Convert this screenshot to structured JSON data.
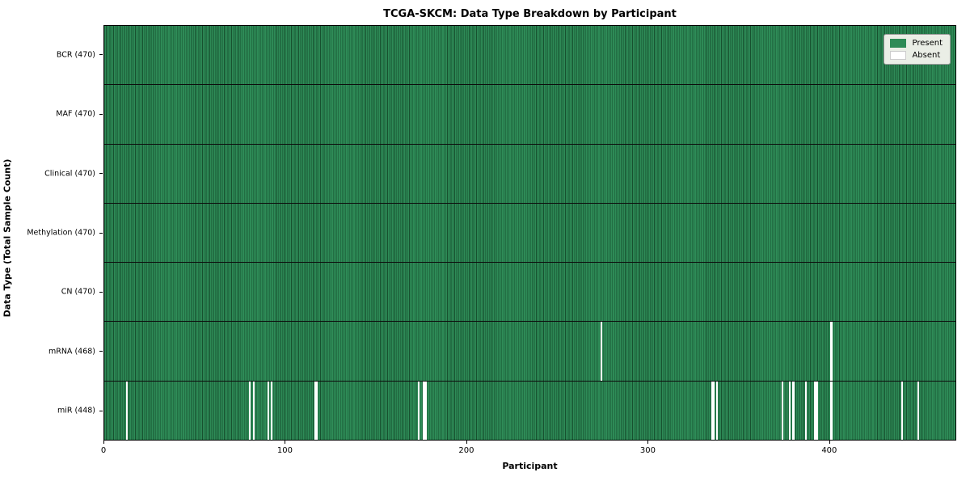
{
  "figure": {
    "title": "TCGA-SKCM: Data Type Breakdown by Participant",
    "xlabel": "Participant",
    "ylabel": "Data Type (Total Sample Count)"
  },
  "chart_data": {
    "type": "heatmap",
    "title": "TCGA-SKCM: Data Type Breakdown by Participant",
    "xlabel": "Participant",
    "ylabel": "Data Type (Total Sample Count)",
    "n_participants": 470,
    "x_ticks": [
      0,
      100,
      200,
      300,
      400
    ],
    "grid": false,
    "legend_position": "upper right",
    "colors": {
      "present": "#2e8b57",
      "absent": "#ffffff",
      "cell_edge": "#17512f",
      "row_divider": "#0d0d0d"
    },
    "legend": [
      {
        "label": "Present",
        "color": "#2e8b57"
      },
      {
        "label": "Absent",
        "color": "#ffffff"
      }
    ],
    "rows": [
      {
        "label": "BCR (470)",
        "total": 470,
        "absent": []
      },
      {
        "label": "MAF (470)",
        "total": 470,
        "absent": []
      },
      {
        "label": "Clinical (470)",
        "total": 470,
        "absent": []
      },
      {
        "label": "Methylation (470)",
        "total": 470,
        "absent": []
      },
      {
        "label": "CN (470)",
        "total": 470,
        "absent": []
      },
      {
        "label": "mRNA (468)",
        "total": 468,
        "absent": [
          274,
          401
        ]
      },
      {
        "label": "miR (448)",
        "total": 448,
        "absent": [
          12,
          80,
          82,
          90,
          92,
          116,
          117,
          173,
          176,
          177,
          335,
          336,
          338,
          374,
          378,
          380,
          387,
          392,
          393,
          401,
          440,
          449
        ]
      }
    ]
  }
}
